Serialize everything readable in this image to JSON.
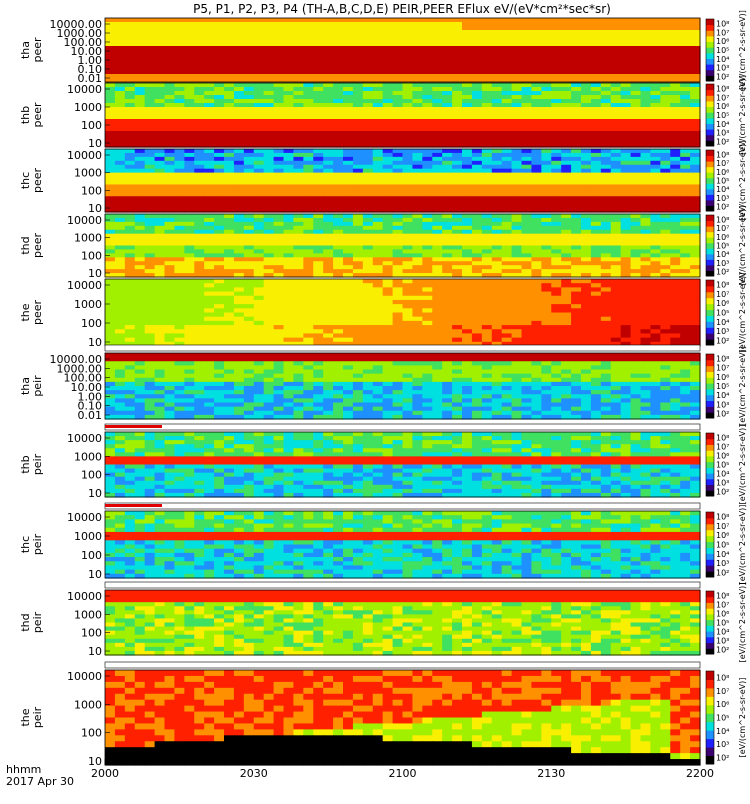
{
  "chart_data": {
    "type": "heatmap",
    "title": "P5, P1, P2, P3, P4 (TH-A,B,C,D,E) PEIR,PEER EFlux eV/(eV*cm²*sec*sr)",
    "time_axis": {
      "label_line1": "hhmm",
      "label_line2": "2017 Apr 30",
      "ticks": [
        "2000",
        "2030",
        "2100",
        "2130",
        "2200"
      ],
      "range": [
        "2000",
        "2200"
      ]
    },
    "colorbar_label": "[eV/(cm^2-s-sr-eV)]",
    "colorbar_ticks": [
      "10²",
      "10³",
      "10⁴",
      "10⁵",
      "10⁶",
      "10⁷",
      "10⁸"
    ],
    "colors": {
      "scale": [
        "#000000",
        "#3a0070",
        "#2020ff",
        "#1e90ff",
        "#00e0e0",
        "#40e060",
        "#a0f000",
        "#f8f000",
        "#ff9000",
        "#ff2000",
        "#c00000"
      ]
    },
    "panels": [
      {
        "probe": "tha",
        "species": "peer",
        "ylabel_line1": "tha",
        "ylabel_line2": "peer",
        "yticks": [
          "10000.00",
          "1000.00",
          "100.00",
          "10.00",
          "1.00",
          "0.10",
          "0.01"
        ]
      },
      {
        "probe": "thb",
        "species": "peer",
        "ylabel_line1": "thb",
        "ylabel_line2": "peer",
        "yticks": [
          "10000",
          "1000",
          "100",
          "10"
        ]
      },
      {
        "probe": "thc",
        "species": "peer",
        "ylabel_line1": "thc",
        "ylabel_line2": "peer",
        "yticks": [
          "10000",
          "1000",
          "100",
          "10"
        ]
      },
      {
        "probe": "thd",
        "species": "peer",
        "ylabel_line1": "thd",
        "ylabel_line2": "peer",
        "yticks": [
          "10000",
          "1000",
          "100",
          "10"
        ]
      },
      {
        "probe": "the",
        "species": "peer",
        "ylabel_line1": "the",
        "ylabel_line2": "peer",
        "yticks": [
          "10000",
          "1000",
          "100",
          "10"
        ]
      },
      {
        "probe": "tha",
        "species": "peir",
        "ylabel_line1": "tha",
        "ylabel_line2": "peir",
        "yticks": [
          "10000.00",
          "1000.00",
          "100.00",
          "10.00",
          "1.00",
          "0.10",
          "0.01"
        ]
      },
      {
        "probe": "thb",
        "species": "peir",
        "ylabel_line1": "thb",
        "ylabel_line2": "peir",
        "yticks": [
          "10000",
          "1000",
          "100",
          "10"
        ]
      },
      {
        "probe": "thc",
        "species": "peir",
        "ylabel_line1": "thc",
        "ylabel_line2": "peir",
        "yticks": [
          "10000",
          "1000",
          "100",
          "10"
        ]
      },
      {
        "probe": "thd",
        "species": "peir",
        "ylabel_line1": "thd",
        "ylabel_line2": "peir",
        "yticks": [
          "10000",
          "1000",
          "100",
          "10"
        ]
      },
      {
        "probe": "the",
        "species": "peir",
        "ylabel_line1": "the",
        "ylabel_line2": "peir",
        "yticks": [
          "10000",
          "1000",
          "100",
          "10"
        ]
      }
    ]
  }
}
